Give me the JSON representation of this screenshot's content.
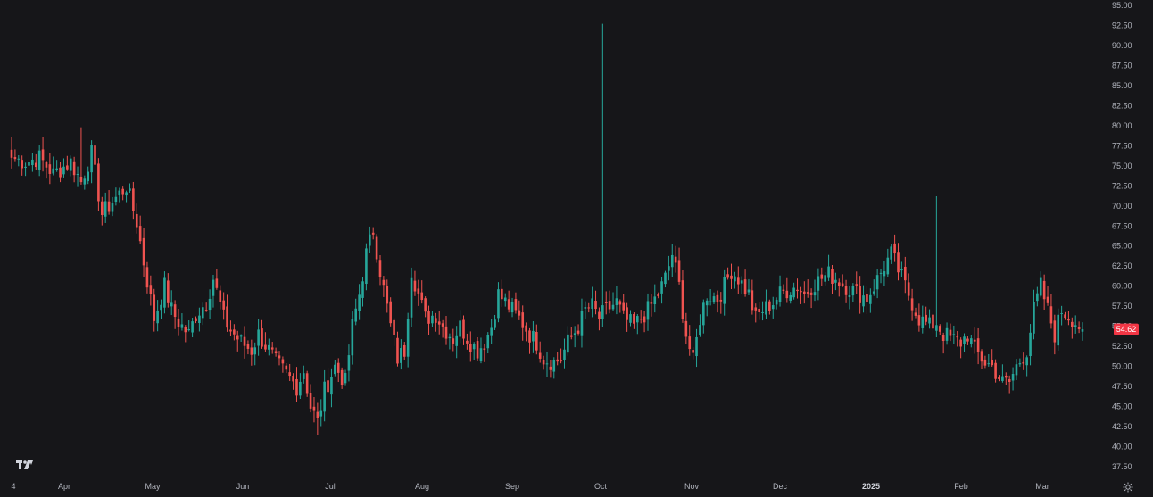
{
  "chart_data": {
    "type": "candlestick",
    "ylim": [
      37.5,
      95
    ],
    "y_ticks": [
      "37.50",
      "40.00",
      "42.50",
      "45.00",
      "47.50",
      "50.00",
      "52.50",
      "55.00",
      "57.50",
      "60.00",
      "62.50",
      "65.00",
      "67.50",
      "70.00",
      "72.50",
      "75.00",
      "77.50",
      "80.00",
      "82.50",
      "85.00",
      "87.50",
      "90.00",
      "92.50",
      "95.00"
    ],
    "x_tick_labels": [
      {
        "label": "4",
        "bold": false
      },
      {
        "label": "Apr",
        "bold": false
      },
      {
        "label": "May",
        "bold": false
      },
      {
        "label": "Jun",
        "bold": false
      },
      {
        "label": "Jul",
        "bold": false
      },
      {
        "label": "Aug",
        "bold": false
      },
      {
        "label": "Sep",
        "bold": false
      },
      {
        "label": "Oct",
        "bold": false
      },
      {
        "label": "Nov",
        "bold": false
      },
      {
        "label": "Dec",
        "bold": false
      },
      {
        "label": "2025",
        "bold": true
      },
      {
        "label": "Feb",
        "bold": false
      },
      {
        "label": "Mar",
        "bold": false
      }
    ],
    "anchor_closes": [
      [
        0,
        76
      ],
      [
        4,
        75.5
      ],
      [
        8,
        76
      ],
      [
        12,
        74
      ],
      [
        17,
        75.5
      ],
      [
        20,
        73
      ],
      [
        23,
        76.5
      ],
      [
        26,
        69
      ],
      [
        30,
        71
      ],
      [
        33,
        72.5
      ],
      [
        36,
        68
      ],
      [
        38,
        63
      ],
      [
        41,
        56
      ],
      [
        44,
        60
      ],
      [
        46,
        57
      ],
      [
        48,
        55.5
      ],
      [
        51,
        54
      ],
      [
        53,
        56.5
      ],
      [
        56,
        58
      ],
      [
        58,
        61
      ],
      [
        61,
        56
      ],
      [
        63,
        54.5
      ],
      [
        66,
        53
      ],
      [
        69,
        52
      ],
      [
        71,
        54
      ],
      [
        74,
        52
      ],
      [
        76,
        50.5
      ],
      [
        79,
        49
      ],
      [
        82,
        47.5
      ],
      [
        84,
        49.5
      ],
      [
        86,
        45
      ],
      [
        88,
        43
      ],
      [
        90,
        47
      ],
      [
        93,
        50
      ],
      [
        96,
        48
      ],
      [
        98,
        55
      ],
      [
        100,
        59
      ],
      [
        102,
        64
      ],
      [
        104,
        67
      ],
      [
        106,
        62
      ],
      [
        109,
        55
      ],
      [
        111,
        51
      ],
      [
        113,
        52
      ],
      [
        115,
        62
      ],
      [
        117,
        59
      ],
      [
        119,
        56
      ],
      [
        122,
        56.5
      ],
      [
        124,
        55
      ],
      [
        127,
        53.5
      ],
      [
        129,
        55
      ],
      [
        132,
        53
      ],
      [
        134,
        52
      ],
      [
        136,
        53
      ],
      [
        138,
        55
      ],
      [
        140,
        59
      ],
      [
        142,
        58
      ],
      [
        144,
        57
      ],
      [
        146,
        56
      ],
      [
        149,
        54
      ],
      [
        151,
        53
      ],
      [
        153,
        51
      ],
      [
        156,
        50.5
      ],
      [
        158,
        51
      ],
      [
        160,
        53
      ],
      [
        163,
        55
      ],
      [
        165,
        57
      ],
      [
        167,
        57.5
      ],
      [
        169,
        56
      ],
      [
        171,
        57
      ],
      [
        174,
        58
      ],
      [
        176,
        56
      ],
      [
        179,
        55
      ],
      [
        181,
        56
      ],
      [
        183,
        57
      ],
      [
        186,
        59
      ],
      [
        188,
        61
      ],
      [
        190,
        64
      ],
      [
        192,
        60
      ],
      [
        194,
        54
      ],
      [
        196,
        50.5
      ],
      [
        198,
        56
      ],
      [
        200,
        59
      ],
      [
        203,
        58.5
      ],
      [
        205,
        60
      ],
      [
        207,
        62
      ],
      [
        209,
        61
      ],
      [
        212,
        59
      ],
      [
        214,
        56
      ],
      [
        216,
        57
      ],
      [
        219,
        58
      ],
      [
        221,
        59
      ],
      [
        223,
        59.5
      ],
      [
        226,
        60
      ],
      [
        228,
        59
      ],
      [
        230,
        60
      ],
      [
        233,
        61
      ],
      [
        235,
        61.5
      ],
      [
        237,
        61
      ],
      [
        240,
        60
      ],
      [
        242,
        59.5
      ],
      [
        244,
        59
      ],
      [
        246,
        58.5
      ],
      [
        248,
        60
      ],
      [
        251,
        62.5
      ],
      [
        253,
        64
      ],
      [
        255,
        62
      ],
      [
        257,
        60
      ],
      [
        259,
        58
      ],
      [
        261,
        56
      ],
      [
        264,
        55
      ],
      [
        266,
        55.5
      ],
      [
        268,
        54
      ],
      [
        270,
        53.5
      ],
      [
        273,
        53
      ],
      [
        275,
        54
      ],
      [
        277,
        52
      ],
      [
        280,
        50.5
      ],
      [
        282,
        50
      ],
      [
        285,
        48
      ],
      [
        287,
        48
      ],
      [
        289,
        50
      ],
      [
        292,
        52
      ],
      [
        294,
        57
      ],
      [
        296,
        60
      ],
      [
        298,
        57
      ],
      [
        300,
        54
      ],
      [
        302,
        57
      ],
      [
        305,
        56
      ],
      [
        307,
        55
      ],
      [
        308,
        54.62
      ]
    ],
    "series": [
      {
        "direction": "up",
        "color": "#26a69a"
      },
      {
        "direction": "down",
        "color": "#ef5350"
      }
    ],
    "last_price": "54.62",
    "last_price_color": "#f23645"
  }
}
